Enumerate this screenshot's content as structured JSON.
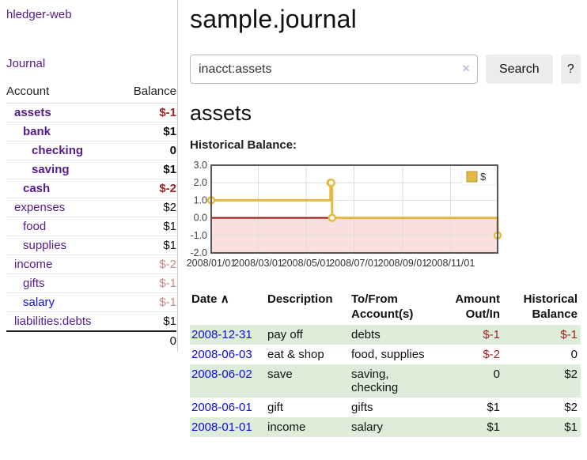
{
  "sidebar": {
    "app_title": "hledger-web",
    "journal_label": "Journal",
    "accounts_table": {
      "account_header": "Account",
      "balance_header": "Balance",
      "rows": [
        {
          "name": "assets",
          "indent": 1,
          "bold": true,
          "balance": "$-1",
          "balance_class": "neg"
        },
        {
          "name": "bank",
          "indent": 2,
          "bold": true,
          "balance": "$1",
          "balance_class": ""
        },
        {
          "name": "checking",
          "indent": 3,
          "bold": true,
          "balance": "0",
          "balance_class": ""
        },
        {
          "name": "saving",
          "indent": 3,
          "bold": true,
          "balance": "$1",
          "balance_class": ""
        },
        {
          "name": "cash",
          "indent": 2,
          "bold": true,
          "balance": "$-2",
          "balance_class": "neg"
        },
        {
          "name": "expenses",
          "indent": 1,
          "bold": false,
          "balance": "$2",
          "balance_class": ""
        },
        {
          "name": "food",
          "indent": 2,
          "bold": false,
          "balance": "$1",
          "balance_class": ""
        },
        {
          "name": "supplies",
          "indent": 2,
          "bold": false,
          "balance": "$1",
          "balance_class": ""
        },
        {
          "name": "income",
          "indent": 1,
          "bold": false,
          "balance": "$-2",
          "balance_class": "mutedneg"
        },
        {
          "name": "gifts",
          "indent": 2,
          "bold": false,
          "balance": "$-1",
          "balance_class": "mutedneg"
        },
        {
          "name": "salary",
          "indent": 2,
          "bold": false,
          "balance": "$-1",
          "balance_class": "mutedneg",
          "blue": true
        },
        {
          "name": "liabilities:debts",
          "indent": 1,
          "bold": false,
          "balance": "$1",
          "balance_class": ""
        }
      ],
      "total": "0"
    }
  },
  "main": {
    "title": "sample.journal",
    "search": {
      "value": "inacct:assets",
      "clear_icon": "×",
      "button_label": "Search",
      "help_label": "?"
    },
    "account_heading": "assets",
    "chart_heading": "Historical Balance:"
  },
  "register": {
    "headers": {
      "date": "Date",
      "sort_icon": "∧",
      "description": "Description",
      "accounts": "To/From Account(s)",
      "amount": "Amount Out/In",
      "balance": "Historical Balance"
    },
    "rows": [
      {
        "date": "2008-12-31",
        "description": "pay off",
        "accounts": "debts",
        "amount": "$-1",
        "amount_neg": true,
        "balance": "$-1",
        "balance_neg": true,
        "green": true
      },
      {
        "date": "2008-06-03",
        "description": "eat & shop",
        "accounts": "food, supplies",
        "amount": "$-2",
        "amount_neg": true,
        "balance": "0",
        "balance_neg": false,
        "green": false
      },
      {
        "date": "2008-06-02",
        "description": "save",
        "accounts": "saving, checking",
        "amount": "0",
        "amount_neg": false,
        "balance": "$2",
        "balance_neg": false,
        "green": true
      },
      {
        "date": "2008-06-01",
        "description": "gift",
        "accounts": "gifts",
        "amount": "$1",
        "amount_neg": false,
        "balance": "$2",
        "balance_neg": false,
        "green": false
      },
      {
        "date": "2008-01-01",
        "description": "income",
        "accounts": "salary",
        "amount": "$1",
        "amount_neg": false,
        "balance": "$1",
        "balance_neg": false,
        "green": true
      }
    ]
  },
  "chart_data": {
    "type": "line",
    "title": "Historical Balance:",
    "x_start": "2008-01-01",
    "x_total_days": 365,
    "ylim": [
      -2,
      3
    ],
    "y_ticks": [
      3,
      2,
      1,
      0,
      -1,
      -2
    ],
    "x_ticks": [
      "2008/01/01",
      "2008/03/01",
      "2008/05/01",
      "2008/07/01",
      "2008/09/01",
      "2008/11/01"
    ],
    "series": [
      {
        "name": "$",
        "style": "step-after",
        "points": [
          [
            "2008-01-01",
            1
          ],
          [
            "2008-06-01",
            2
          ],
          [
            "2008-06-02",
            2
          ],
          [
            "2008-06-03",
            0
          ],
          [
            "2008-12-31",
            -1
          ]
        ]
      }
    ],
    "legend": {
      "label": "$",
      "position": "top-right"
    },
    "grid": true,
    "colors": {
      "line": "#e3bb44",
      "marker_fill": "#ffffff",
      "negative_region": "#fbdede",
      "zero_line": "#991414",
      "grid": "#dddddd",
      "border": "#555555"
    }
  }
}
